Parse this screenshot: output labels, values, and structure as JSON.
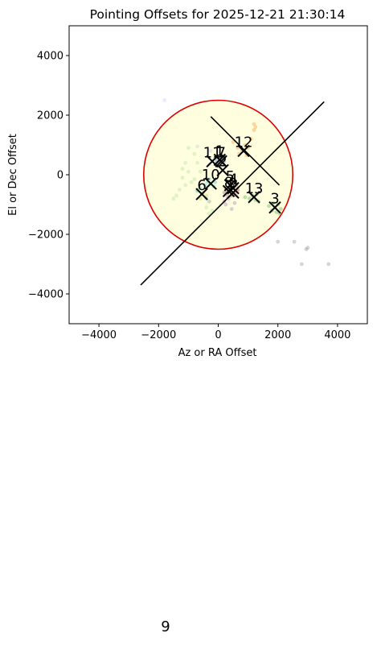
{
  "page_number": "9",
  "chart_data": {
    "type": "scatter",
    "title": "Pointing Offsets for 2025-12-21 21:30:14",
    "xlabel": "Az or RA Offset",
    "ylabel": "El or Dec Offset",
    "xlim": [
      -5000,
      5000
    ],
    "ylim": [
      -5000,
      5000
    ],
    "xticks": [
      -4000,
      -2000,
      0,
      2000,
      4000
    ],
    "yticks": [
      -4000,
      -2000,
      0,
      2000,
      4000
    ],
    "xtick_labels": [
      "−4000",
      "−2000",
      "0",
      "2000",
      "4000"
    ],
    "ytick_labels": [
      "−4000",
      "−2000",
      "0",
      "2000",
      "4000"
    ],
    "grid": false,
    "aspect": "equal",
    "circle": {
      "center": [
        0,
        0
      ],
      "radius": 2500,
      "edge_color": "#e00000",
      "fill_color": "#fffede"
    },
    "lines": [
      {
        "x": [
          -2600,
          3550
        ],
        "y": [
          -3700,
          2450
        ],
        "color": "#000000"
      },
      {
        "x": [
          -250,
          2050
        ],
        "y": [
          1950,
          -350
        ],
        "color": "#000000"
      }
    ],
    "cluster_centers": [
      {
        "label": "1",
        "x": 50,
        "y": 500
      },
      {
        "label": "2",
        "x": 150,
        "y": 150
      },
      {
        "label": "3",
        "x": 1900,
        "y": -1100
      },
      {
        "label": "4",
        "x": 500,
        "y": -450
      },
      {
        "label": "5",
        "x": 400,
        "y": -350
      },
      {
        "label": "6",
        "x": -550,
        "y": -650
      },
      {
        "label": "7",
        "x": 100,
        "y": 450
      },
      {
        "label": "8",
        "x": 350,
        "y": -550
      },
      {
        "label": "9",
        "x": 500,
        "y": -600
      },
      {
        "label": "10",
        "x": -250,
        "y": -300
      },
      {
        "label": "11",
        "x": -200,
        "y": 450
      },
      {
        "label": "12",
        "x": 850,
        "y": 800
      },
      {
        "label": "13",
        "x": 1200,
        "y": -750
      }
    ],
    "series": [
      {
        "color": "#1f77b4",
        "points": [
          [
            50,
            500
          ],
          [
            100,
            350
          ],
          [
            -50,
            450
          ],
          [
            150,
            600
          ],
          [
            0,
            300
          ],
          [
            200,
            450
          ],
          [
            -100,
            550
          ],
          [
            80,
            650
          ]
        ]
      },
      {
        "color": "#ff7f0e",
        "points": [
          [
            800,
            800
          ],
          [
            900,
            1000
          ],
          [
            700,
            700
          ],
          [
            1000,
            900
          ],
          [
            1200,
            1700
          ],
          [
            1250,
            1600
          ],
          [
            1200,
            1500
          ],
          [
            650,
            900
          ],
          [
            950,
            650
          ],
          [
            500,
            1100
          ],
          [
            1100,
            1200
          ]
        ]
      },
      {
        "color": "#2ca02c",
        "points": [
          [
            1900,
            -1100
          ],
          [
            2000,
            -1000
          ],
          [
            1800,
            -1200
          ],
          [
            2050,
            -1300
          ],
          [
            1850,
            -950
          ],
          [
            1950,
            -1250
          ],
          [
            1700,
            -1050
          ],
          [
            2100,
            -1150
          ],
          [
            1150,
            -700
          ],
          [
            1250,
            -850
          ],
          [
            1050,
            -800
          ],
          [
            1300,
            -650
          ],
          [
            900,
            -750
          ],
          [
            1350,
            -900
          ]
        ]
      },
      {
        "color": "#d62728",
        "points": [
          [
            500,
            -450
          ],
          [
            600,
            -350
          ],
          [
            400,
            -550
          ],
          [
            550,
            -600
          ],
          [
            450,
            -300
          ],
          [
            650,
            -500
          ]
        ]
      },
      {
        "color": "#9467bd",
        "points": [
          [
            400,
            -350
          ],
          [
            300,
            -550
          ],
          [
            500,
            -650
          ],
          [
            350,
            -800
          ],
          [
            250,
            -1000
          ],
          [
            450,
            -1150
          ],
          [
            200,
            -900
          ],
          [
            550,
            -950
          ]
        ]
      },
      {
        "color": "#8c564b",
        "points": [
          [
            350,
            -550
          ],
          [
            250,
            -450
          ],
          [
            450,
            -700
          ],
          [
            300,
            -650
          ],
          [
            200,
            -600
          ]
        ]
      },
      {
        "color": "#e377c2",
        "points": [
          [
            500,
            -600
          ],
          [
            600,
            -700
          ],
          [
            400,
            -450
          ],
          [
            650,
            -550
          ],
          [
            300,
            -750
          ]
        ]
      },
      {
        "color": "#7f7f7f",
        "points": [
          [
            2000,
            -2250
          ],
          [
            2550,
            -2250
          ],
          [
            2950,
            -2500
          ],
          [
            3000,
            -2450
          ],
          [
            2800,
            -3000
          ],
          [
            3700,
            -3000
          ],
          [
            -300,
            -900
          ]
        ]
      },
      {
        "color": "#bcbd22",
        "points": [
          [
            -500,
            -600
          ],
          [
            -700,
            -500
          ],
          [
            -600,
            -800
          ],
          [
            -400,
            -700
          ]
        ]
      },
      {
        "color": "#17becf",
        "points": [
          [
            -550,
            -650
          ],
          [
            -700,
            -550
          ],
          [
            -400,
            -800
          ],
          [
            -600,
            -450
          ],
          [
            -250,
            -300
          ],
          [
            -350,
            -250
          ],
          [
            -150,
            -400
          ],
          [
            -300,
            -150
          ],
          [
            -100,
            -250
          ],
          [
            -450,
            -350
          ]
        ]
      },
      {
        "color": "#aec7e8",
        "points": [
          [
            -200,
            450
          ],
          [
            -300,
            350
          ],
          [
            -100,
            550
          ],
          [
            -1800,
            2500
          ],
          [
            -700,
            950
          ],
          [
            -250,
            800
          ]
        ]
      },
      {
        "color": "#98df8a",
        "points": [
          [
            -800,
            700
          ],
          [
            -1100,
            400
          ],
          [
            -1200,
            -100
          ],
          [
            -1400,
            -700
          ],
          [
            -1300,
            -500
          ],
          [
            -900,
            -250
          ],
          [
            -1500,
            -800
          ],
          [
            -700,
            400
          ],
          [
            -1000,
            100
          ],
          [
            -600,
            100
          ],
          [
            -800,
            -150
          ],
          [
            -1100,
            -350
          ],
          [
            -400,
            -1100
          ],
          [
            -300,
            -1300
          ],
          [
            -200,
            -1200
          ],
          [
            -1000,
            900
          ],
          [
            -1200,
            200
          ]
        ]
      }
    ]
  }
}
